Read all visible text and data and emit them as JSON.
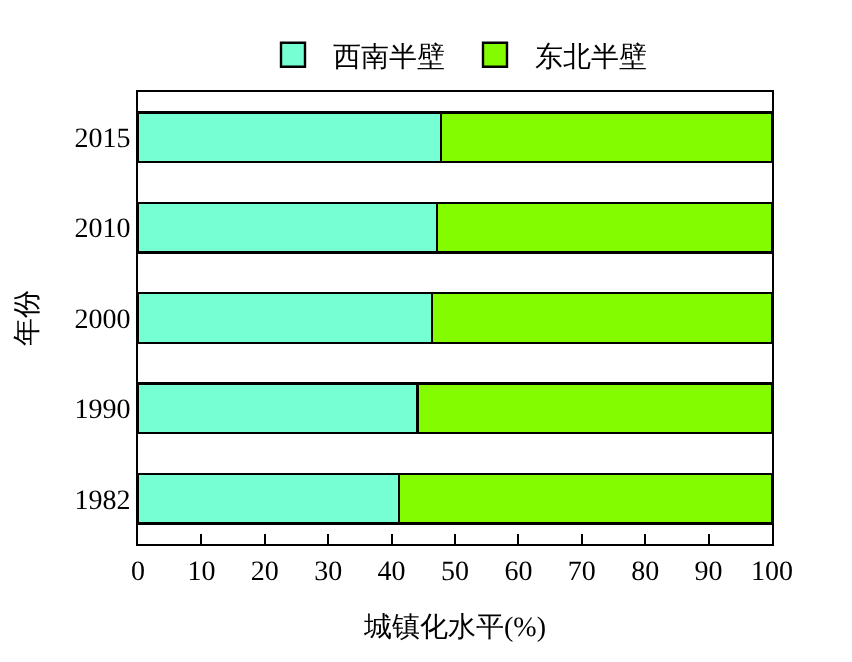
{
  "chart_data": {
    "type": "bar",
    "orientation": "horizontal",
    "stacked": true,
    "ylabel": "年份",
    "xlabel": "城镇化水平(%)",
    "categories": [
      "2015",
      "2010",
      "2000",
      "1990",
      "1982"
    ],
    "series": [
      {
        "name": "西南半壁",
        "color": "#76ffd2",
        "values": [
          47.8,
          47.2,
          46.4,
          44.1,
          41.2
        ]
      },
      {
        "name": "东北半壁",
        "color": "#84fc00",
        "values": [
          52.2,
          52.8,
          53.6,
          55.9,
          58.8
        ]
      }
    ],
    "xlim": [
      0,
      100
    ],
    "xticks": [
      0,
      10,
      20,
      30,
      40,
      50,
      60,
      70,
      80,
      90,
      100
    ],
    "legend": "top"
  }
}
